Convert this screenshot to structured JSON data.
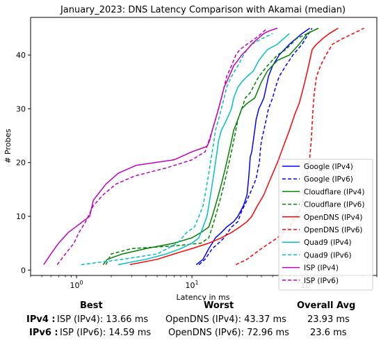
{
  "chart_data": {
    "type": "line",
    "title": "January_2023: DNS Latency Comparison with Akamai (median)",
    "xlabel": "Latency in ms",
    "ylabel": "# Probes",
    "xscale": "log",
    "xlim": [
      0.4,
      400
    ],
    "ylim": [
      -1,
      47
    ],
    "xticks": [
      1,
      10,
      100
    ],
    "yticks": [
      0,
      10,
      20,
      30,
      40
    ],
    "grid": false,
    "legend_position": "lower right",
    "series": [
      {
        "name": "Google (IPv4)",
        "color": "#0000ff",
        "dashed": false,
        "x": [
          10.9,
          12.5,
          14,
          15,
          16,
          18,
          20,
          23,
          25,
          28,
          30,
          31,
          31.5,
          32,
          33,
          34,
          35,
          36,
          37,
          38,
          40,
          42,
          44,
          46,
          50,
          57,
          70,
          90,
          105
        ],
        "y": [
          1,
          2,
          4,
          5,
          6,
          7,
          8,
          9,
          10,
          12,
          14,
          17,
          19,
          21,
          22,
          24,
          26,
          28,
          29,
          30,
          31,
          32,
          34,
          36,
          38,
          40,
          42,
          44,
          45
        ]
      },
      {
        "name": "Google (IPv6)",
        "color": "#0000ff",
        "dashed": true,
        "x": [
          11.5,
          13,
          15,
          17,
          19,
          22,
          25,
          27,
          30,
          33,
          36,
          37.5,
          38.5,
          39,
          40,
          42,
          44,
          46,
          48,
          50,
          53,
          57,
          65,
          75,
          90,
          110
        ],
        "y": [
          1,
          2,
          4,
          5,
          6,
          8,
          9,
          11,
          13,
          15,
          17,
          19,
          20,
          22,
          24,
          26,
          28,
          30,
          31,
          32,
          34,
          36,
          38,
          40,
          42,
          45
        ]
      },
      {
        "name": "Cloudflare (IPv4)",
        "color": "#008000",
        "dashed": false,
        "x": [
          1.7,
          1.85,
          2.5,
          4,
          7,
          10,
          12,
          14,
          15,
          16,
          17,
          18,
          19,
          20,
          21,
          22,
          23,
          24,
          25,
          26,
          27,
          30,
          35,
          40,
          45,
          55,
          70,
          85,
          100,
          125
        ],
        "y": [
          1,
          2,
          3,
          4,
          5,
          6,
          7,
          8,
          10,
          12,
          14,
          16,
          18,
          20,
          22,
          24,
          26,
          27,
          28,
          29,
          30,
          31,
          32,
          35,
          37,
          39,
          40,
          42,
          44,
          45
        ]
      },
      {
        "name": "Cloudflare (IPv6)",
        "color": "#008000",
        "dashed": true,
        "x": [
          1.8,
          2,
          3,
          7,
          12,
          14,
          15,
          16,
          17,
          18,
          19,
          20,
          21,
          22,
          23,
          24,
          25,
          26,
          27,
          28,
          29,
          32,
          38,
          45,
          55,
          65,
          80,
          100,
          125
        ],
        "y": [
          1,
          3,
          4,
          4.5,
          5,
          6,
          8,
          10,
          12,
          14,
          16,
          18,
          20,
          22,
          24,
          26,
          28,
          29,
          30,
          31,
          32,
          33,
          36,
          38,
          40,
          41,
          43,
          44,
          45
        ]
      },
      {
        "name": "OpenDNS (IPv4)",
        "color": "#ff0000",
        "dashed": false,
        "x": [
          2.9,
          5,
          7,
          10,
          14,
          18,
          22,
          26,
          30,
          33,
          37,
          42,
          48,
          55,
          62,
          70,
          78,
          85,
          90,
          95,
          100,
          105,
          110,
          120,
          135,
          155,
          185
        ],
        "y": [
          1,
          2,
          3,
          4,
          5,
          6,
          7,
          8,
          9,
          10,
          12,
          14,
          17,
          20,
          23,
          26,
          29,
          31,
          33,
          35,
          37,
          39,
          41,
          42,
          43,
          44,
          45
        ]
      },
      {
        "name": "OpenDNS (IPv6)",
        "color": "#ff0000",
        "dashed": true,
        "x": [
          24,
          30,
          40,
          55,
          70,
          80,
          90,
          95,
          100,
          105,
          108,
          110,
          112,
          115,
          120,
          130,
          145,
          165,
          200,
          250,
          310
        ],
        "y": [
          1,
          2,
          4,
          6,
          8,
          10,
          12,
          15,
          18,
          21,
          24,
          27,
          30,
          33,
          36,
          38,
          40,
          42,
          43,
          44,
          45
        ]
      },
      {
        "name": "Quad9 (IPv4)",
        "color": "#00bfbf",
        "dashed": false,
        "x": [
          2.3,
          4,
          6,
          8,
          10,
          11.5,
          12.5,
          13.5,
          14,
          14.5,
          15,
          15.5,
          16,
          16.5,
          17,
          18,
          19,
          20,
          21,
          22,
          23,
          25,
          27,
          30,
          34,
          38,
          45,
          55,
          70
        ],
        "y": [
          1,
          2,
          3,
          4,
          5,
          6,
          8,
          10,
          12,
          14,
          16,
          18,
          20,
          22,
          24,
          26,
          27,
          28,
          29,
          30,
          32,
          34,
          35,
          36,
          37,
          39,
          41,
          42,
          44
        ]
      },
      {
        "name": "Quad9 (IPv6)",
        "color": "#00bfbf",
        "dashed": true,
        "x": [
          1.1,
          2.5,
          5,
          7.5,
          9,
          10.5,
          11.5,
          12.5,
          13,
          13.5,
          14,
          14.5,
          15,
          15.5,
          16,
          17,
          18,
          19,
          20,
          22,
          25,
          28,
          30,
          33,
          40,
          50
        ],
        "y": [
          1,
          2,
          3,
          5,
          7,
          8,
          10,
          12,
          14,
          16,
          18,
          20,
          22,
          24,
          26,
          28,
          30,
          32,
          34,
          36,
          38,
          40,
          41,
          42,
          43,
          44
        ]
      },
      {
        "name": "ISP (IPv4)",
        "color": "#bf00bf",
        "dashed": false,
        "x": [
          0.52,
          0.6,
          0.7,
          0.85,
          1.3,
          1.4,
          1.8,
          2.3,
          3.3,
          7,
          10,
          13.5,
          14.2,
          15,
          16,
          17,
          18,
          19,
          20,
          21,
          22,
          23,
          25,
          27,
          30,
          33,
          37,
          42,
          47,
          55
        ],
        "y": [
          1,
          3,
          5,
          7,
          10,
          13,
          16,
          18,
          19.5,
          20.5,
          22,
          23,
          24,
          26,
          28,
          30,
          32,
          34,
          35,
          36,
          37,
          38,
          39,
          40,
          41,
          42,
          43,
          44,
          44.5,
          45
        ]
      },
      {
        "name": "ISP (IPv6)",
        "color": "#bf00bf",
        "dashed": true,
        "x": [
          0.68,
          0.8,
          0.95,
          1.05,
          1.2,
          1.4,
          1.7,
          2.2,
          3.2,
          6,
          10,
          13,
          14,
          15,
          16,
          17,
          18,
          19,
          20,
          22,
          24,
          26,
          30,
          35,
          40,
          45
        ],
        "y": [
          1,
          3,
          5,
          7,
          9,
          12,
          14,
          16,
          17.5,
          19,
          20.5,
          22,
          24,
          26,
          28,
          30,
          32,
          34,
          36,
          38,
          40,
          41,
          42,
          43,
          44,
          45
        ]
      }
    ]
  },
  "summary": {
    "headers": [
      "Best",
      "Worst",
      "Overall Avg"
    ],
    "rows": [
      {
        "label": "IPv4 :",
        "best": "ISP (IPv4): 13.66 ms",
        "worst": "OpenDNS (IPv4): 43.37 ms",
        "avg": "23.93 ms"
      },
      {
        "label": "IPv6 :",
        "best": "ISP (IPv6): 14.59 ms",
        "worst": "OpenDNS (IPv6): 72.96 ms",
        "avg": "23.6 ms"
      }
    ]
  }
}
